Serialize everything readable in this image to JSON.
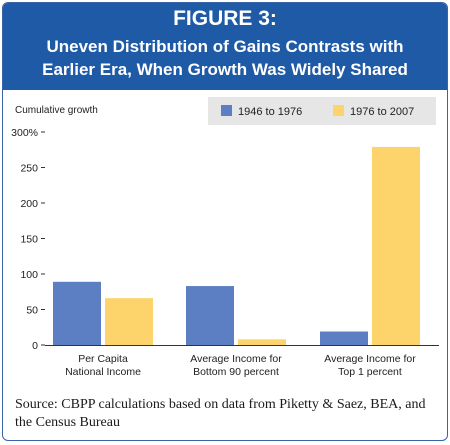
{
  "figure": {
    "label": "FIGURE 3:",
    "title_line1": "Uneven Distribution of Gains Contrasts with",
    "title_line2": "Earlier Era, When Growth Was Widely Shared",
    "source": "Source: CBPP calculations based on data from Piketty & Saez, BEA, and the Census Bureau"
  },
  "colors": {
    "banner": "#1f5aa6",
    "series1": "#5b7fc2",
    "series2": "#fdd36b",
    "legend_box": "#e6e6e6"
  },
  "chart_data": {
    "type": "bar",
    "ylabel": "Cumulative growth",
    "ylim": [
      0,
      300
    ],
    "yticks": [
      0,
      50,
      100,
      150,
      200,
      250,
      300
    ],
    "ytick_labels": [
      "0",
      "50",
      "100",
      "150",
      "200",
      "250",
      "300%"
    ],
    "grid": false,
    "legend_position": "top-right",
    "categories": [
      [
        "Per Capita",
        "National Income"
      ],
      [
        "Average Income for",
        "Bottom 90 percent"
      ],
      [
        "Average Income for",
        "Top 1 percent"
      ]
    ],
    "series": [
      {
        "name": "1946 to 1976",
        "color": "#5b7fc2",
        "values": [
          89,
          83,
          19
        ]
      },
      {
        "name": "1976 to 2007",
        "color": "#fdd36b",
        "values": [
          66,
          8,
          279
        ]
      }
    ]
  }
}
